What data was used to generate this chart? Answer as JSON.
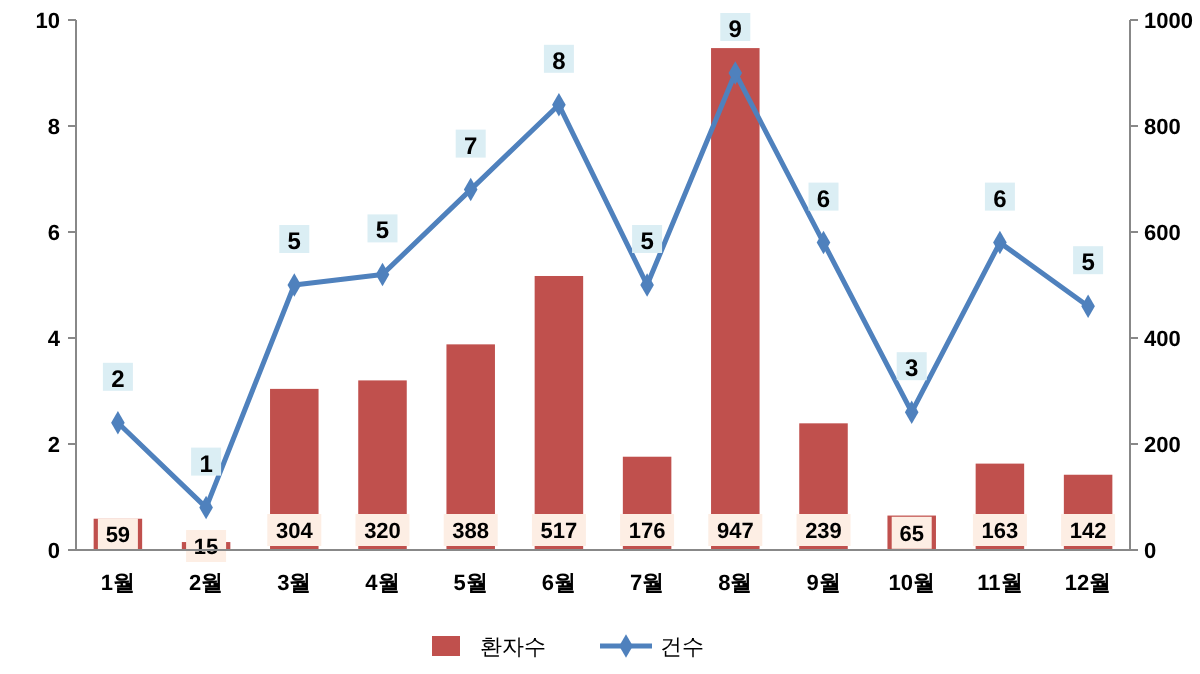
{
  "chart_data": {
    "type": "bar",
    "categories": [
      "1월",
      "2월",
      "3월",
      "4월",
      "5월",
      "6월",
      "7월",
      "8월",
      "9월",
      "10월",
      "11월",
      "12월"
    ],
    "series": [
      {
        "name": "환자수",
        "axis": "y2",
        "color": "#c0504d",
        "values": [
          59,
          15,
          304,
          320,
          388,
          517,
          176,
          947,
          239,
          65,
          163,
          142
        ],
        "value_labels": [
          "59",
          "15",
          "304",
          "320",
          "388",
          "517",
          "176",
          "947",
          "239",
          "65",
          "163",
          "142"
        ]
      },
      {
        "name": "건수",
        "type": "line",
        "color": "#4f81bd",
        "values": [
          2.4,
          0.8,
          5.0,
          5.2,
          6.8,
          8.4,
          5.0,
          9.0,
          5.8,
          2.6,
          5.8,
          4.6
        ],
        "value_labels": [
          "2",
          "1",
          "5",
          "5",
          "7",
          "8",
          "5",
          "9",
          "6",
          "3",
          "6",
          "5"
        ]
      }
    ],
    "ylim": [
      0,
      10
    ],
    "yticks": [
      0,
      2,
      4,
      6,
      8,
      10
    ],
    "y2lim": [
      0,
      1000
    ],
    "y2ticks": [
      0,
      200,
      400,
      600,
      800,
      1000
    ],
    "marker": "diamond",
    "legend": "bottom",
    "grid": false
  }
}
